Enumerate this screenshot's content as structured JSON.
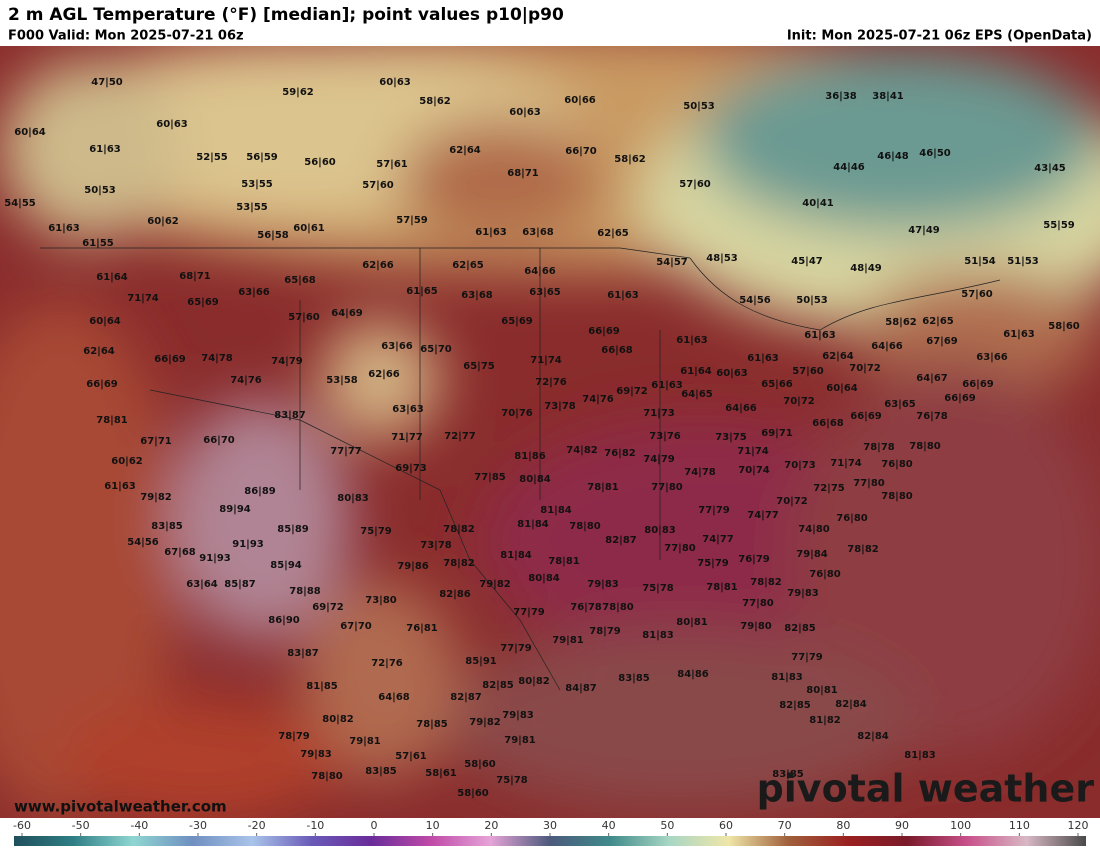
{
  "header": {
    "title": "2 m AGL Temperature (°F) [median]; point values p10|p90",
    "valid": "F000 Valid: Mon 2025-07-21 06z",
    "init": "Init: Mon 2025-07-21 06z EPS (OpenData)"
  },
  "map": {
    "points": [
      "47|50",
      "60|64",
      "61|63",
      "50|53",
      "54|55",
      "61|63",
      "60|62",
      "61|55",
      "60|63",
      "52|55",
      "56|59",
      "53|55",
      "53|55",
      "56|58",
      "59|62",
      "60|63",
      "58|62",
      "60|63",
      "60|66",
      "50|53",
      "36|38",
      "38|41",
      "56|60",
      "57|61",
      "57|60",
      "62|64",
      "68|71",
      "66|70",
      "58|62",
      "57|60",
      "44|46",
      "46|48",
      "46|50",
      "43|45",
      "40|41",
      "57|59",
      "60|61",
      "61|63",
      "63|68",
      "62|65",
      "47|49",
      "55|59",
      "54|57",
      "48|53",
      "45|47",
      "48|49",
      "51|54",
      "51|53",
      "57|60",
      "61|64",
      "68|71",
      "71|74",
      "65|69",
      "63|66",
      "65|68",
      "62|66",
      "62|65",
      "64|66",
      "61|65",
      "63|68",
      "63|65",
      "61|63",
      "54|56",
      "50|53",
      "58|62",
      "62|65",
      "61|63",
      "58|60",
      "60|64",
      "62|64",
      "57|60",
      "64|69",
      "65|69",
      "66|69",
      "61|63",
      "66|68",
      "61|63",
      "67|69",
      "63|66",
      "66|69",
      "74|78",
      "63|66",
      "65|70",
      "65|75",
      "71|74",
      "61|63",
      "62|64",
      "64|66",
      "74|79",
      "66|69",
      "74|76",
      "53|58",
      "62|66",
      "72|76",
      "61|64",
      "60|63",
      "57|60",
      "70|72",
      "64|67",
      "66|69",
      "69|72",
      "61|63",
      "64|65",
      "65|66",
      "70|72",
      "60|64",
      "63|65",
      "66|69",
      "76|78",
      "78|81",
      "63|63",
      "83|87",
      "70|76",
      "73|78",
      "74|76",
      "71|73",
      "64|66",
      "66|69",
      "66|68",
      "67|71",
      "66|70",
      "71|77",
      "72|77",
      "73|76",
      "73|75",
      "69|71",
      "78|78",
      "78|80",
      "77|77",
      "81|86",
      "74|82",
      "76|82",
      "74|79",
      "71|74",
      "60|62",
      "69|73",
      "77|85",
      "80|84",
      "74|78",
      "70|74",
      "70|73",
      "71|74",
      "76|80",
      "61|63",
      "86|89",
      "79|82",
      "78|81",
      "77|80",
      "72|75",
      "77|80",
      "78|80",
      "80|83",
      "70|72",
      "89|94",
      "81|84",
      "77|79",
      "74|77",
      "76|80",
      "83|85",
      "85|89",
      "75|79",
      "78|82",
      "81|84",
      "78|80",
      "80|83",
      "74|80",
      "54|56",
      "91|93",
      "73|78",
      "82|87",
      "77|80",
      "74|77",
      "78|82",
      "67|68",
      "91|93",
      "81|84",
      "78|81",
      "76|79",
      "79|84",
      "85|94",
      "79|86",
      "78|82",
      "75|79",
      "76|80",
      "63|64",
      "85|87",
      "80|84",
      "79|83",
      "78|81",
      "78|82",
      "78|88",
      "82|86",
      "79|82",
      "75|78",
      "79|83",
      "69|72",
      "73|80",
      "77|80",
      "86|90",
      "76|78",
      "78|80",
      "77|79",
      "67|70",
      "76|81",
      "80|81",
      "79|80",
      "82|85",
      "79|81",
      "78|79",
      "81|83",
      "83|87",
      "77|79",
      "85|91",
      "77|79",
      "72|76",
      "81|83",
      "81|85",
      "82|85",
      "80|82",
      "84|87",
      "83|85",
      "84|86",
      "80|81",
      "64|68",
      "82|87",
      "82|85",
      "82|84",
      "80|82",
      "79|83",
      "81|82",
      "78|85",
      "79|82",
      "78|79",
      "79|81",
      "79|81",
      "82|84",
      "79|83",
      "57|61",
      "81|83",
      "58|60",
      "78|80",
      "83|85",
      "58|61",
      "75|78",
      "83|85",
      "58|60"
    ]
  },
  "watermark": {
    "url": "www.pivotalweather.com",
    "logo": "pivotal weather"
  },
  "colorbar": {
    "ticks": [
      -60,
      -50,
      -40,
      -30,
      -20,
      -10,
      0,
      10,
      20,
      30,
      40,
      50,
      60,
      70,
      80,
      90,
      100,
      110,
      120
    ],
    "colors": [
      "#1f4f5c",
      "#2f7f86",
      "#8fd6d2",
      "#6f8fc0",
      "#a9c4ea",
      "#6a5ab8",
      "#6a2c9a",
      "#c04aa8",
      "#e6a4d8",
      "#4c5a7c",
      "#3f8a8a",
      "#a8d6c4",
      "#efe6a8",
      "#a0603c",
      "#9a2020",
      "#7a1a2a",
      "#c8508a",
      "#d8b8c4",
      "#4a4a4a"
    ]
  }
}
